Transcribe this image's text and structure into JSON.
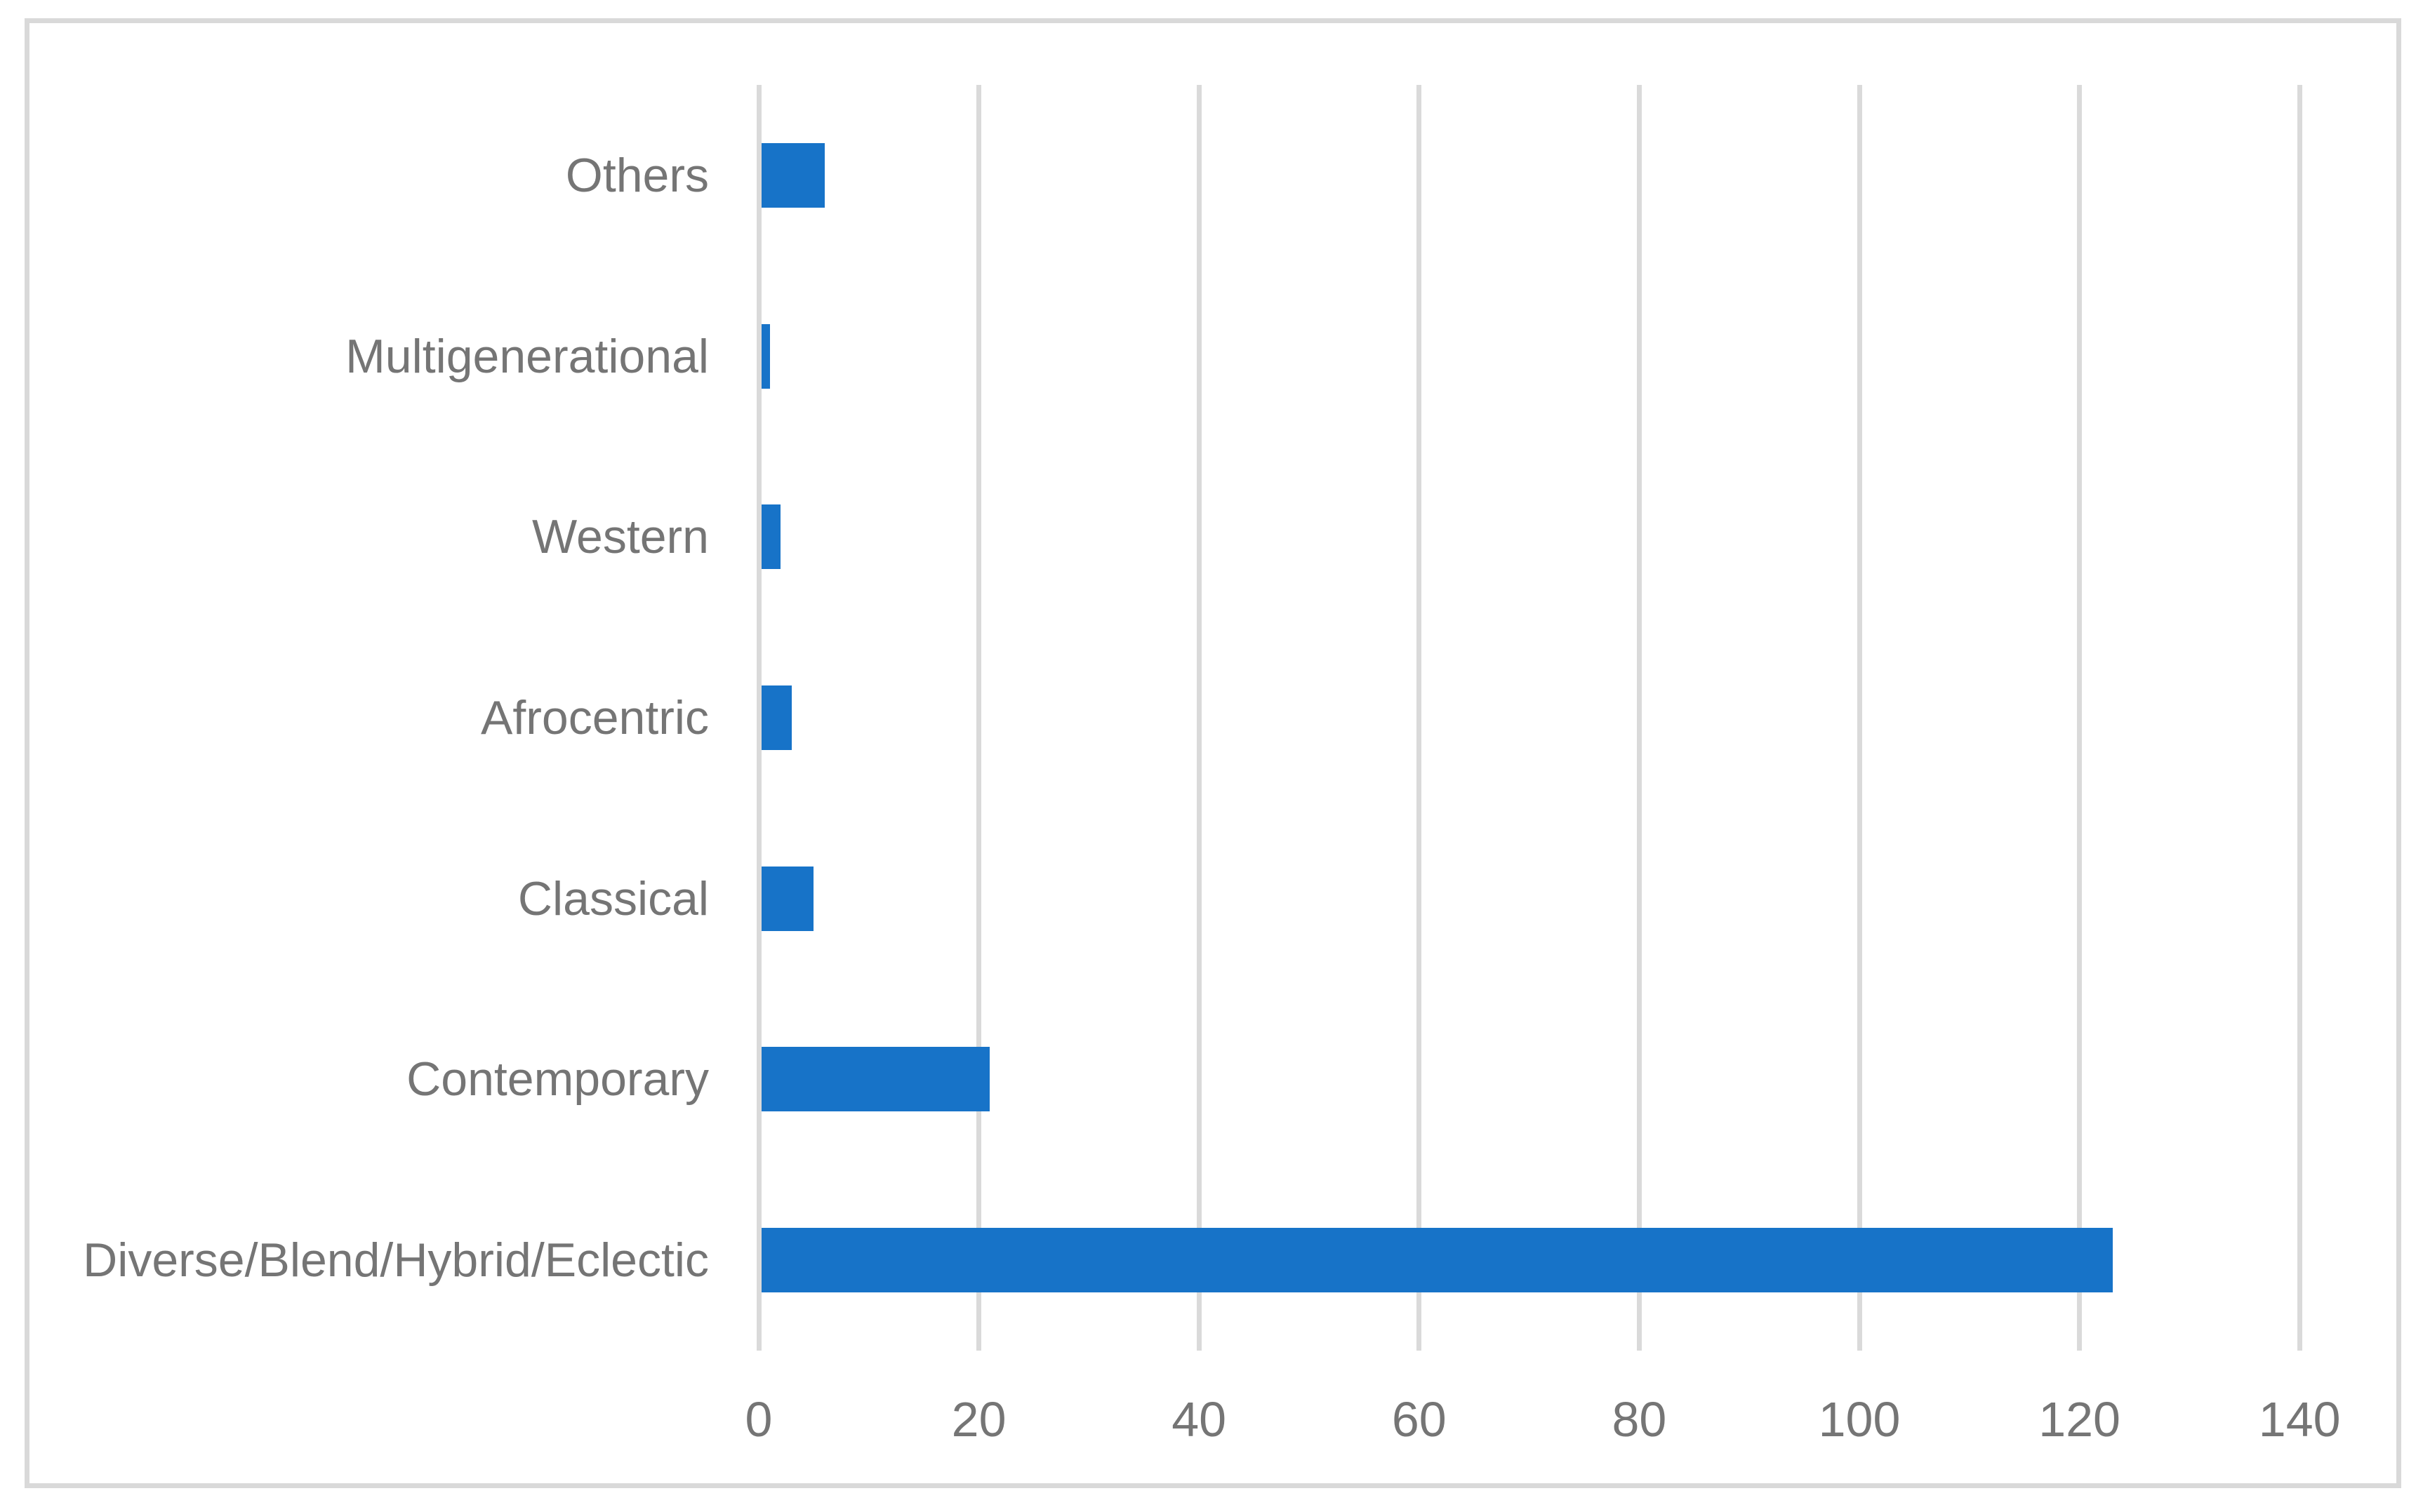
{
  "figure": {
    "background_color": "#FFFFFF",
    "frame_border_color": "#D9D9D9",
    "title": ""
  },
  "chart_data": {
    "type": "bar",
    "orientation": "horizontal",
    "title": "",
    "xlabel": "",
    "ylabel": "",
    "categories": [
      "Others",
      "Multigenerational",
      "Western",
      "Afrocentric",
      "Classical",
      "Contemporary",
      "Diverse/Blend/Hybrid/Eclectic"
    ],
    "values": [
      6,
      1,
      2,
      3,
      5,
      21,
      123
    ],
    "x_ticks": [
      0,
      20,
      40,
      60,
      80,
      100,
      120,
      140
    ],
    "xlim": [
      0,
      140
    ],
    "grid": true,
    "gridline_color": "#DADADA",
    "legend": false,
    "bar_color": "#1773C8",
    "label_color": "#757575",
    "tick_label_color": "#757575"
  }
}
